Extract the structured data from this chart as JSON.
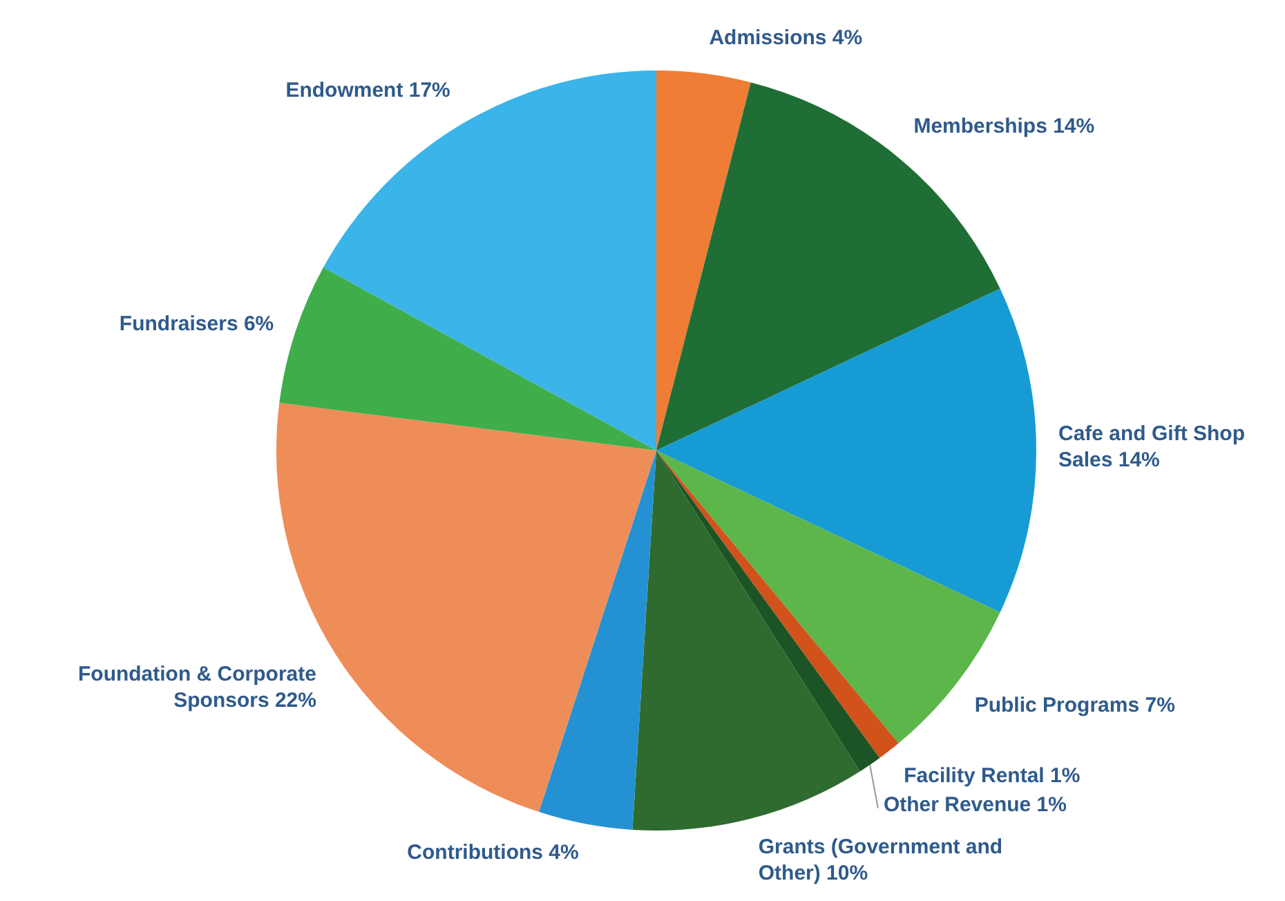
{
  "chart_data": {
    "type": "pie",
    "categories": [
      "Admissions",
      "Memberships",
      "Cafe and Gift Shop Sales",
      "Public Programs",
      "Facility Rental",
      "Other Revenue",
      "Grants (Government and Other)",
      "Contributions",
      "Foundation & Corporate Sponsors",
      "Fundraisers",
      "Endowment"
    ],
    "values": [
      4,
      14,
      14,
      7,
      1,
      1,
      10,
      4,
      22,
      6,
      17
    ],
    "value_labels": [
      "4%",
      "14%",
      "14%",
      "7%",
      "1%",
      "1%",
      "10%",
      "4%",
      "22%",
      "6%",
      "17%"
    ],
    "colors": [
      "#ef7d35",
      "#1f6e35",
      "#169bd5",
      "#5db64a",
      "#d2521c",
      "#1d5426",
      "#2f6a2e",
      "#2492d2",
      "#ee8d58",
      "#3fae4a",
      "#3ab4e9"
    ],
    "legend": false
  }
}
